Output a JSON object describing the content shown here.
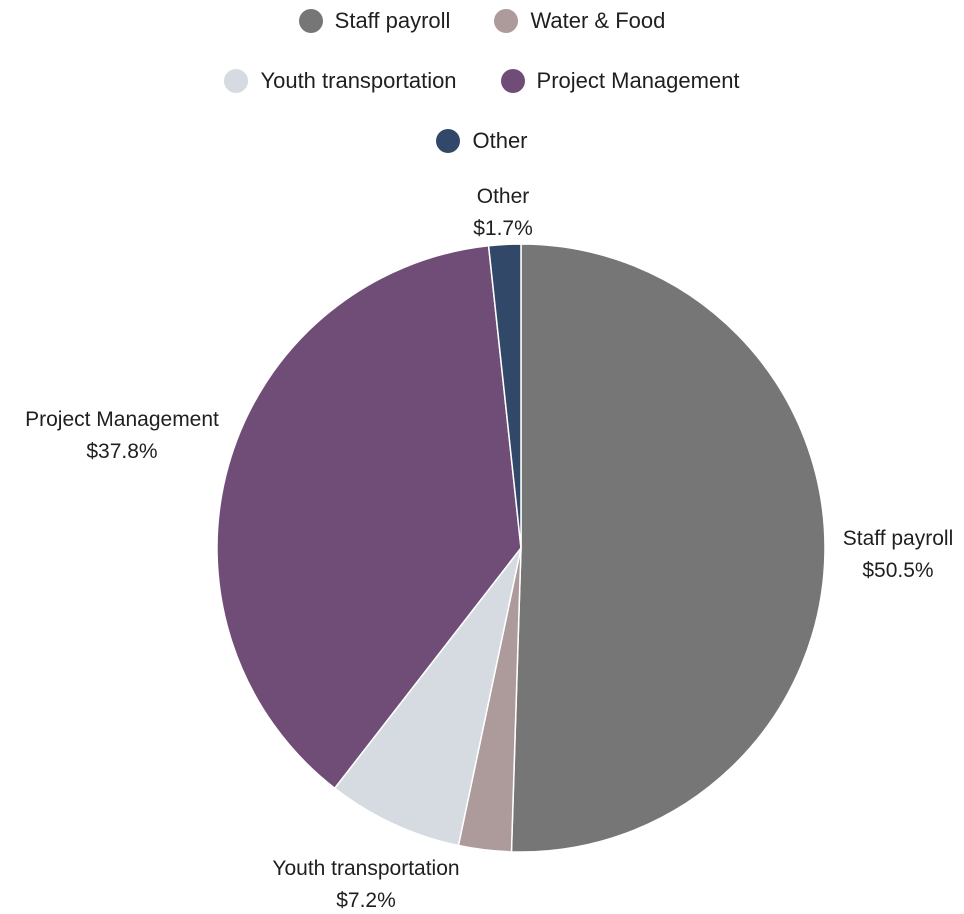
{
  "chart_data": {
    "type": "pie",
    "slices": [
      {
        "name": "Staff payroll",
        "value": 50.5,
        "label": "$50.5%",
        "color": "#767676"
      },
      {
        "name": "Water & Food",
        "value": 2.8,
        "label": "",
        "color": "#ad9a9a"
      },
      {
        "name": "Youth transportation",
        "value": 7.2,
        "label": "$7.2%",
        "color": "#d5dbe1"
      },
      {
        "name": "Project Management",
        "value": 37.8,
        "label": "$37.8%",
        "color": "#704d77"
      },
      {
        "name": "Other",
        "value": 1.7,
        "label": "$1.7%",
        "color": "#324868"
      }
    ],
    "legend_position": "top",
    "legend": [
      {
        "name": "Staff payroll",
        "color": "#767676"
      },
      {
        "name": "Water & Food",
        "color": "#ad9a9a"
      },
      {
        "name": "Youth transportation",
        "color": "#d5dbe1"
      },
      {
        "name": "Project Management",
        "color": "#704d77"
      },
      {
        "name": "Other",
        "color": "#324868"
      }
    ]
  }
}
